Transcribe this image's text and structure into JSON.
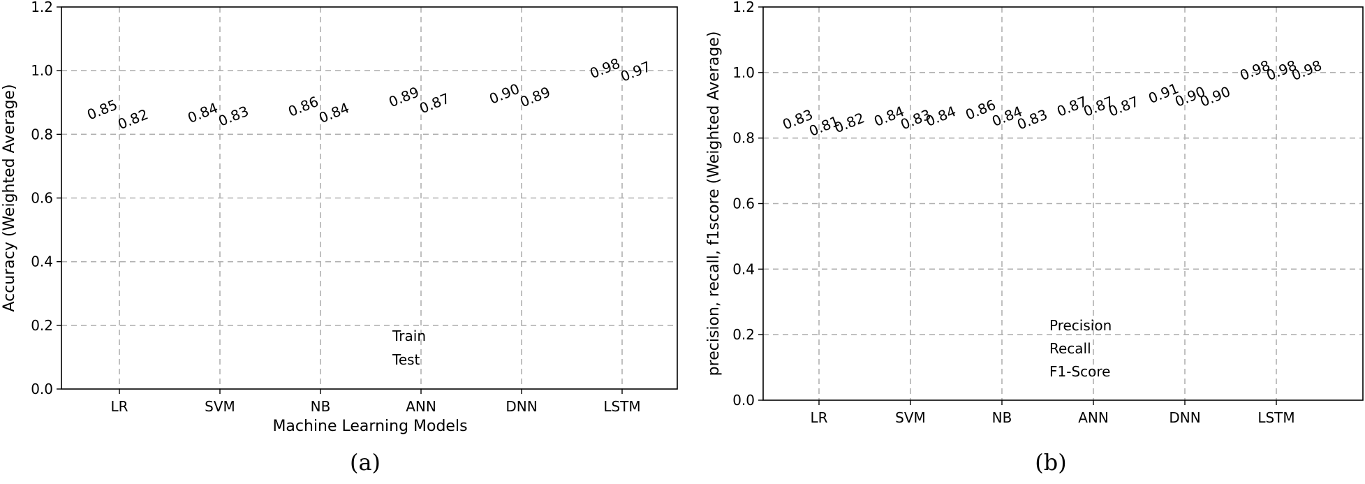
{
  "chart_data": [
    {
      "type": "bar",
      "categories": [
        "LR",
        "SVM",
        "NB",
        "ANN",
        "DNN",
        "LSTM"
      ],
      "series": [
        {
          "name": "Train",
          "values": [
            0.85,
            0.84,
            0.86,
            0.89,
            0.9,
            0.98
          ]
        },
        {
          "name": "Test",
          "values": [
            0.82,
            0.83,
            0.84,
            0.87,
            0.89,
            0.97
          ]
        }
      ],
      "value_labels": [
        [
          "0.85",
          "0.84",
          "0.86",
          "0.89",
          "0.90",
          "0.98"
        ],
        [
          "0.82",
          "0.83",
          "0.84",
          "0.87",
          "0.89",
          "0.97"
        ]
      ],
      "xlabel": "Machine Learning Models",
      "ylabel": "Accuracy (Weighted Average)",
      "ylim": [
        0,
        1.2
      ],
      "yticks": [
        "0.0",
        "0.2",
        "0.4",
        "0.6",
        "0.8",
        "1.0",
        "1.2"
      ],
      "grid": true,
      "legend_position": "bottom-center",
      "caption": "(a)"
    },
    {
      "type": "bar",
      "categories": [
        "LR",
        "SVM",
        "NB",
        "ANN",
        "DNN",
        "LSTM"
      ],
      "series": [
        {
          "name": "Precision",
          "values": [
            0.83,
            0.84,
            0.86,
            0.87,
            0.91,
            0.98
          ]
        },
        {
          "name": "Recall",
          "values": [
            0.81,
            0.83,
            0.84,
            0.87,
            0.9,
            0.98
          ]
        },
        {
          "name": "F1-Score",
          "values": [
            0.82,
            0.84,
            0.83,
            0.87,
            0.9,
            0.98
          ]
        }
      ],
      "value_labels": [
        [
          "0.83",
          "0.84",
          "0.86",
          "0.87",
          "0.91",
          "0.98"
        ],
        [
          "0.81",
          "0.83",
          "0.84",
          "0.87",
          "0.90",
          "0.98"
        ],
        [
          "0.82",
          "0.84",
          "0.83",
          "0.87",
          "0.90",
          "0.98"
        ]
      ],
      "xlabel": "",
      "ylabel": "precision, recall, f1score (Weighted Average)",
      "ylim": [
        0,
        1.2
      ],
      "yticks": [
        "0.0",
        "0.2",
        "0.4",
        "0.6",
        "0.8",
        "1.0",
        "1.2"
      ],
      "grid": true,
      "legend_position": "bottom-center",
      "caption": "(b)"
    }
  ]
}
